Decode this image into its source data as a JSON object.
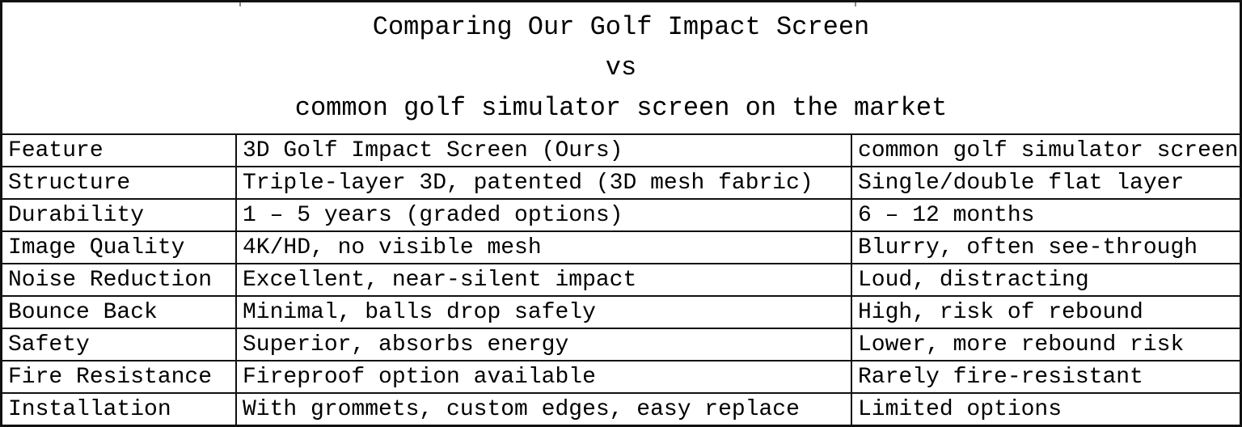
{
  "title": {
    "line1": "Comparing Our Golf Impact Screen",
    "line2": "vs",
    "line3": "common golf simulator screen on the market"
  },
  "table": {
    "headers": [
      "Feature",
      "3D Golf Impact Screen (Ours)",
      "common golf simulator screen"
    ],
    "rows": [
      {
        "feature": "Structure",
        "ours": "Triple-layer 3D, patented (3D mesh fabric)",
        "common": "Single/double flat layer"
      },
      {
        "feature": "Durability",
        "ours": "1 – 5 years (graded options)",
        "common": "6 – 12 months"
      },
      {
        "feature": "Image Quality",
        "ours": "4K/HD, no visible mesh",
        "common": "Blurry, often see-through"
      },
      {
        "feature": "Noise Reduction",
        "ours": "Excellent, near-silent impact",
        "common": "Loud, distracting"
      },
      {
        "feature": "Bounce Back",
        "ours": "Minimal, balls drop safely",
        "common": "High, risk of rebound"
      },
      {
        "feature": "Safety",
        "ours": "Superior, absorbs energy",
        "common": "Lower, more rebound risk"
      },
      {
        "feature": "Fire Resistance",
        "ours": "Fireproof option available",
        "common": "Rarely fire-resistant"
      },
      {
        "feature": "Installation",
        "ours": "With grommets, custom edges, easy replace",
        "common": "Limited options"
      }
    ]
  },
  "colors": {
    "background": "#ffffff",
    "text": "#000000",
    "border": "#111111"
  }
}
